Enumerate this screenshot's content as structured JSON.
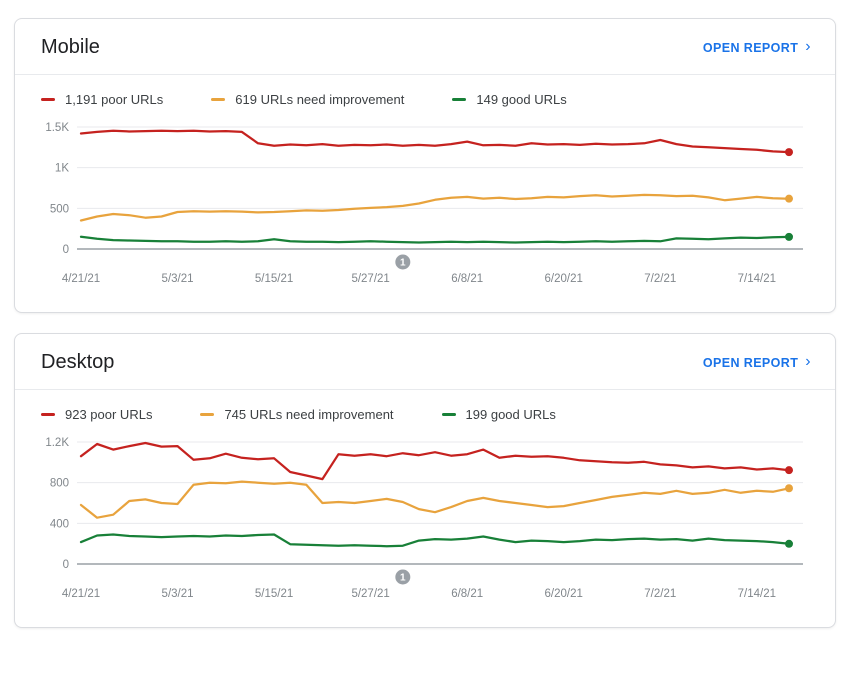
{
  "colors": {
    "poor": "#c5221f",
    "needs_improvement": "#e8a33d",
    "good": "#188038",
    "link": "#1a73e8",
    "axis_text": "#80868b",
    "gridline": "#e8eaed",
    "axis_line": "#9aa0a6",
    "marker": "#9aa0a6",
    "marker_text": "#ffffff"
  },
  "cards": [
    {
      "title": "Mobile",
      "action": {
        "label": "OPEN REPORT",
        "chevron": "›"
      }
    },
    {
      "title": "Desktop",
      "action": {
        "label": "OPEN REPORT",
        "chevron": "›"
      }
    }
  ],
  "chart_data": [
    {
      "type": "line",
      "title": "Mobile",
      "legend_position": "top",
      "grid": "horizontal",
      "x_range": [
        "4/21/21",
        "7/18/21"
      ],
      "x_tick_labels": [
        "4/21/21",
        "5/3/21",
        "5/15/21",
        "5/27/21",
        "6/8/21",
        "6/20/21",
        "7/2/21",
        "7/14/21"
      ],
      "x_tick_indices": [
        0,
        6,
        12,
        18,
        24,
        30,
        36,
        42
      ],
      "ylim": [
        0,
        1500
      ],
      "y_ticks": [
        {
          "value": 0,
          "label": "0"
        },
        {
          "value": 500,
          "label": "500"
        },
        {
          "value": 1000,
          "label": "1K"
        },
        {
          "value": 1500,
          "label": "1.5K"
        }
      ],
      "annotation_marker": {
        "label": "1",
        "index": 20,
        "near_date": "5/31/21"
      },
      "series": [
        {
          "name": "1,191 poor URLs",
          "key": "poor",
          "current": 1191,
          "color": "#c5221f",
          "values": [
            1420,
            1440,
            1455,
            1445,
            1450,
            1455,
            1450,
            1455,
            1445,
            1450,
            1440,
            1300,
            1270,
            1285,
            1275,
            1290,
            1270,
            1280,
            1275,
            1285,
            1270,
            1280,
            1270,
            1290,
            1320,
            1275,
            1280,
            1270,
            1300,
            1285,
            1290,
            1280,
            1295,
            1285,
            1290,
            1300,
            1340,
            1290,
            1260,
            1250,
            1240,
            1230,
            1220,
            1200,
            1191
          ]
        },
        {
          "name": "619 URLs need improvement",
          "key": "needs_improvement",
          "current": 619,
          "color": "#e8a33d",
          "values": [
            350,
            400,
            430,
            415,
            385,
            400,
            455,
            465,
            460,
            465,
            460,
            450,
            455,
            465,
            475,
            470,
            480,
            495,
            505,
            515,
            530,
            560,
            605,
            630,
            640,
            620,
            630,
            615,
            625,
            640,
            635,
            650,
            660,
            645,
            655,
            665,
            660,
            650,
            655,
            635,
            600,
            620,
            640,
            625,
            619
          ]
        },
        {
          "name": "149 good URLs",
          "key": "good",
          "current": 149,
          "color": "#188038",
          "values": [
            150,
            125,
            110,
            105,
            100,
            95,
            95,
            90,
            90,
            95,
            90,
            95,
            120,
            95,
            90,
            90,
            85,
            90,
            95,
            90,
            85,
            80,
            85,
            90,
            85,
            90,
            85,
            80,
            85,
            90,
            85,
            90,
            95,
            90,
            95,
            100,
            95,
            130,
            125,
            120,
            130,
            140,
            135,
            145,
            149
          ]
        }
      ]
    },
    {
      "type": "line",
      "title": "Desktop",
      "legend_position": "top",
      "grid": "horizontal",
      "x_range": [
        "4/21/21",
        "7/18/21"
      ],
      "x_tick_labels": [
        "4/21/21",
        "5/3/21",
        "5/15/21",
        "5/27/21",
        "6/8/21",
        "6/20/21",
        "7/2/21",
        "7/14/21"
      ],
      "x_tick_indices": [
        0,
        6,
        12,
        18,
        24,
        30,
        36,
        42
      ],
      "ylim": [
        0,
        1200
      ],
      "y_ticks": [
        {
          "value": 0,
          "label": "0"
        },
        {
          "value": 400,
          "label": "400"
        },
        {
          "value": 800,
          "label": "800"
        },
        {
          "value": 1200,
          "label": "1.2K"
        }
      ],
      "annotation_marker": {
        "label": "1",
        "index": 20,
        "near_date": "5/31/21"
      },
      "series": [
        {
          "name": "923 poor URLs",
          "key": "poor",
          "current": 923,
          "color": "#c5221f",
          "values": [
            1060,
            1180,
            1125,
            1160,
            1190,
            1155,
            1160,
            1025,
            1040,
            1085,
            1045,
            1030,
            1040,
            905,
            870,
            835,
            1080,
            1065,
            1080,
            1060,
            1090,
            1070,
            1100,
            1065,
            1080,
            1125,
            1045,
            1065,
            1055,
            1060,
            1045,
            1020,
            1010,
            1000,
            995,
            1005,
            980,
            970,
            950,
            960,
            940,
            950,
            930,
            940,
            923
          ]
        },
        {
          "name": "745 URLs need improvement",
          "key": "needs_improvement",
          "current": 745,
          "color": "#e8a33d",
          "values": [
            580,
            455,
            485,
            620,
            635,
            600,
            590,
            780,
            800,
            795,
            810,
            800,
            790,
            800,
            780,
            600,
            610,
            600,
            620,
            640,
            610,
            540,
            510,
            560,
            620,
            650,
            620,
            600,
            580,
            560,
            570,
            600,
            630,
            660,
            680,
            700,
            690,
            720,
            690,
            700,
            730,
            700,
            720,
            710,
            745
          ]
        },
        {
          "name": "199 good URLs",
          "key": "good",
          "current": 199,
          "color": "#188038",
          "values": [
            215,
            280,
            290,
            275,
            270,
            265,
            270,
            275,
            270,
            280,
            275,
            285,
            290,
            195,
            190,
            185,
            180,
            185,
            180,
            175,
            180,
            230,
            245,
            240,
            250,
            270,
            240,
            215,
            230,
            225,
            215,
            225,
            240,
            235,
            245,
            250,
            240,
            245,
            230,
            250,
            235,
            230,
            225,
            215,
            199
          ]
        }
      ]
    }
  ]
}
